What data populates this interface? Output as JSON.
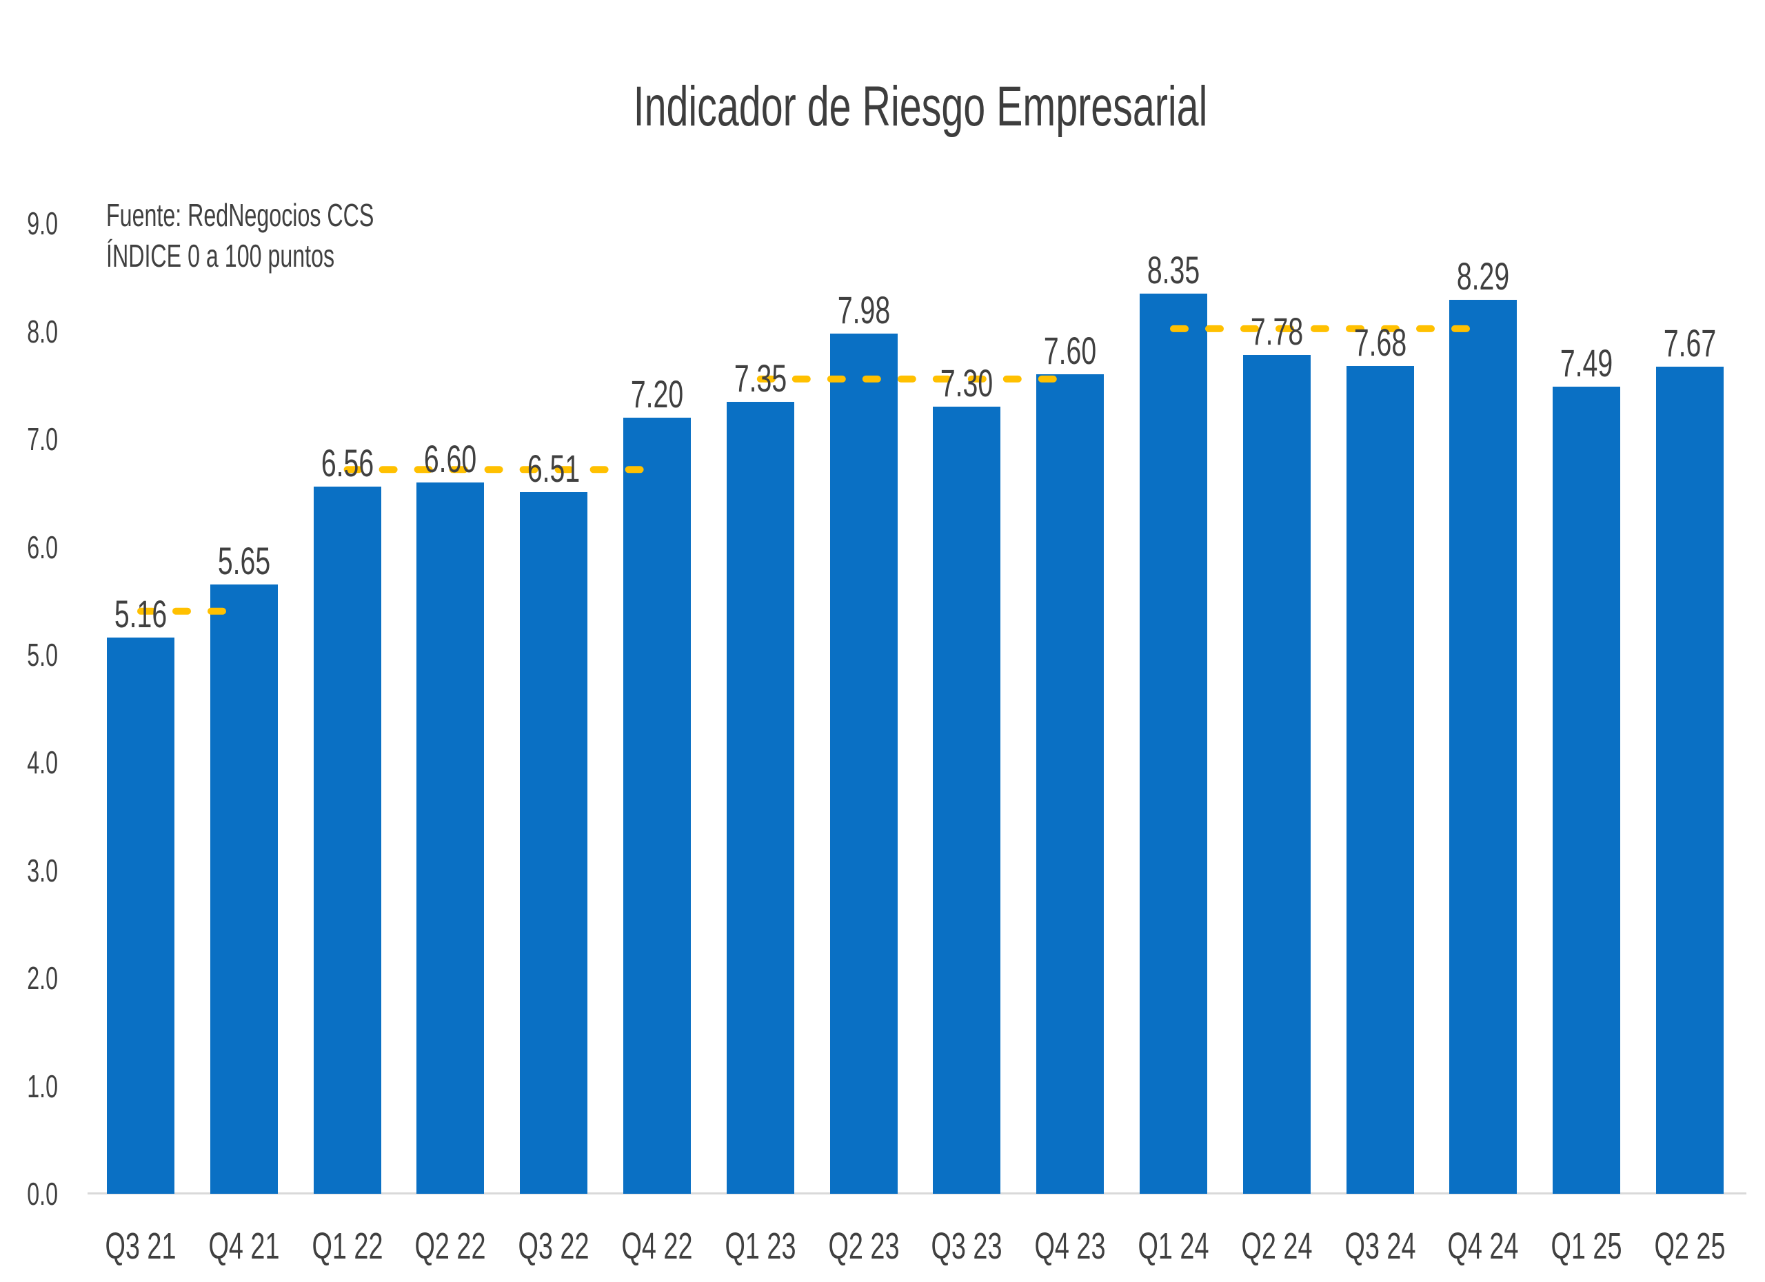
{
  "title": "Indicador de Riesgo Empresarial",
  "source_note": {
    "line1": "Fuente: RedNegocios CCS",
    "line2": "ÍNDICE 0 a 100  puntos"
  },
  "colors": {
    "bar": "#0A70C4",
    "average_line": "#FFC000",
    "text": "#404040",
    "title_text": "#3D3D3D",
    "axis_line": "#D9D9D9",
    "background": "#FFFFFF"
  },
  "chart_data": {
    "type": "bar",
    "title": "Indicador de Riesgo Empresarial",
    "categories": [
      "Q3 21",
      "Q4 21",
      "Q1 22",
      "Q2 22",
      "Q3 22",
      "Q4 22",
      "Q1 23",
      "Q2 23",
      "Q3 23",
      "Q4 23",
      "Q1 24",
      "Q2 24",
      "Q3 24",
      "Q4 24",
      "Q1 25",
      "Q2 25"
    ],
    "values": [
      5.16,
      5.65,
      6.56,
      6.6,
      6.51,
      7.2,
      7.35,
      7.98,
      7.3,
      7.6,
      8.35,
      7.78,
      7.68,
      8.29,
      7.49,
      7.67
    ],
    "value_labels": [
      "5.16",
      "5.65",
      "6.56",
      "6.60",
      "6.51",
      "7.20",
      "7.35",
      "7.98",
      "7.30",
      "7.60",
      "8.35",
      "7.78",
      "7.68",
      "8.29",
      "7.49",
      "7.67"
    ],
    "xlabel": "",
    "ylabel": "",
    "ylim": [
      0,
      9
    ],
    "yticks": [
      "0.0",
      "1.0",
      "2.0",
      "3.0",
      "4.0",
      "5.0",
      "6.0",
      "7.0",
      "8.0",
      "9.0"
    ],
    "grid": false,
    "legend": false,
    "average_lines": [
      {
        "from": "Q3 21",
        "to": "Q4 21",
        "value": 5.405,
        "style": "dashed"
      },
      {
        "from": "Q1 22",
        "to": "Q4 22",
        "value": 6.718,
        "style": "dashed"
      },
      {
        "from": "Q1 23",
        "to": "Q4 23",
        "value": 7.558,
        "style": "dashed"
      },
      {
        "from": "Q1 24",
        "to": "Q4 24",
        "value": 8.025,
        "style": "dashed"
      }
    ]
  }
}
